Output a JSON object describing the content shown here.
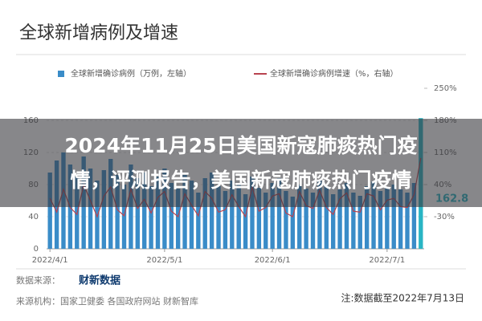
{
  "header": {
    "title": "全球新增病例及增速"
  },
  "overlay_title_lines": [
    "2024年11月25日美国新寇肺痰热门疫",
    "情，评测报告，美国新寇肺痰热门疫情"
  ],
  "chart_data": {
    "type": "bar",
    "categories": [
      "2022/4/1",
      null,
      null,
      null,
      null,
      null,
      null,
      null,
      null,
      null,
      null,
      null,
      null,
      null,
      null,
      null,
      null,
      "2022/5/1",
      null,
      null,
      null,
      null,
      null,
      null,
      null,
      null,
      null,
      null,
      null,
      null,
      null,
      null,
      null,
      "2022/6/1",
      null,
      null,
      null,
      null,
      null,
      null,
      null,
      null,
      null,
      null,
      null,
      null,
      null,
      null,
      null,
      null,
      "2022/7/1",
      null,
      null,
      null,
      null,
      null
    ],
    "series": [
      {
        "name": "全球新增确诊病例（万例，左轴）",
        "color": "#3a8cc8",
        "values": [
          95,
          110,
          120,
          105,
          90,
          115,
          100,
          85,
          98,
          112,
          92,
          80,
          105,
          88,
          95,
          78,
          90,
          100,
          82,
          75,
          92,
          85,
          70,
          88,
          95,
          78,
          72,
          85,
          80,
          68,
          90,
          76,
          70,
          82,
          88,
          72,
          65,
          80,
          75,
          70,
          85,
          78,
          68,
          74,
          82,
          70,
          66,
          78,
          84,
          72,
          76,
          80,
          74,
          70,
          82,
          162.8
        ]
      },
      {
        "name": "全球新增确诊病例增速（%，右轴）",
        "color": "#b8434f",
        "axis": "y2",
        "values": [
          10,
          -20,
          30,
          -10,
          -25,
          40,
          5,
          -30,
          15,
          35,
          -15,
          -28,
          30,
          -12,
          8,
          -22,
          12,
          25,
          -18,
          -30,
          20,
          -5,
          -28,
          25,
          10,
          -20,
          -15,
          18,
          -8,
          -30,
          35,
          -18,
          -10,
          15,
          20,
          -22,
          -30,
          25,
          -6,
          -12,
          28,
          -10,
          -25,
          9,
          22,
          -18,
          -20,
          20,
          15,
          -15,
          6,
          10,
          -8,
          -10,
          18,
          98
        ]
      }
    ],
    "ylim": [
      0,
      200
    ],
    "yticks": [
      0,
      40,
      80,
      120,
      160
    ],
    "y2lim": [
      -100,
      250
    ],
    "y2ticks": [
      {
        "value": -30,
        "label": "-30%"
      },
      {
        "value": 40,
        "label": "40%"
      },
      {
        "value": 110,
        "label": "110%"
      },
      {
        "value": 180,
        "label": "180%"
      },
      {
        "value": 250,
        "label": "250%"
      }
    ],
    "grid": true,
    "highlight_color": "#29b5c4"
  },
  "footer": {
    "source_label": "数据来源：",
    "logo": "财新数据",
    "agencies": "来源机构：国家卫健委 各国政府网站 财新智库",
    "note": "注:数据截至2022年7月13日"
  }
}
